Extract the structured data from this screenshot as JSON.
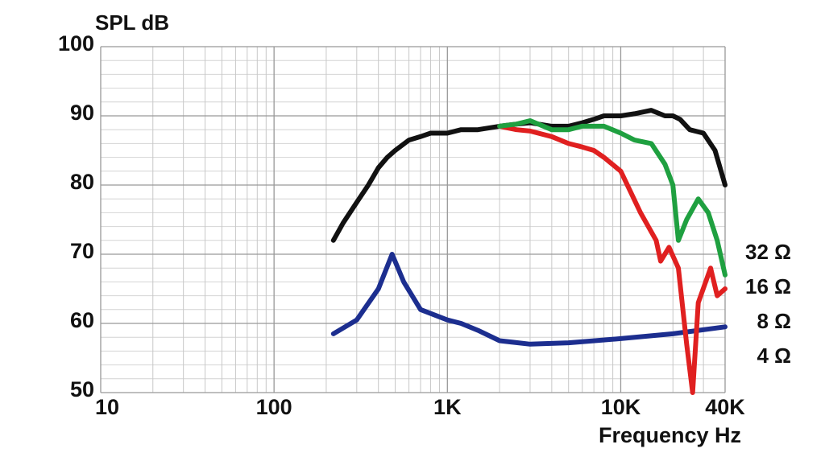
{
  "chart_data": {
    "type": "line",
    "y_label": "SPL dB",
    "x_label": "Frequency Hz",
    "log_x": true,
    "grid": true,
    "xlim": [
      10,
      40000
    ],
    "ylim": [
      50,
      100
    ],
    "xticks": [
      10,
      100,
      {
        "value": 1000,
        "label": "1K"
      },
      {
        "value": 10000,
        "label": "10K"
      },
      {
        "value": 40000,
        "label": "40K"
      }
    ],
    "yticks": [
      50,
      60,
      70,
      80,
      90,
      100
    ],
    "x_minor_ticks": [
      20,
      30,
      40,
      50,
      60,
      70,
      80,
      90,
      200,
      300,
      400,
      500,
      600,
      700,
      800,
      900,
      2000,
      3000,
      4000,
      5000,
      6000,
      7000,
      8000,
      9000,
      20000,
      30000
    ],
    "y_minor_ticks": [
      52,
      54,
      56,
      58,
      62,
      64,
      66,
      68,
      72,
      74,
      76,
      78,
      82,
      84,
      86,
      88,
      92,
      94,
      96,
      98
    ],
    "series": [
      {
        "name": "32 Ω",
        "color": "#111111",
        "x": [
          220,
          250,
          300,
          350,
          400,
          450,
          500,
          600,
          700,
          800,
          1000,
          1200,
          1500,
          2000,
          2500,
          3000,
          4000,
          5000,
          6000,
          7000,
          8000,
          10000,
          12000,
          15000,
          18000,
          20000,
          22000,
          25000,
          30000,
          35000,
          40000
        ],
        "values": [
          72,
          74.5,
          77.5,
          80,
          82.5,
          84,
          85,
          86.5,
          87,
          87.5,
          87.5,
          88,
          88,
          88.5,
          88.8,
          89,
          88.5,
          88.5,
          89,
          89.5,
          90,
          90,
          90.3,
          90.8,
          90,
          90,
          89.5,
          88,
          87.5,
          85,
          80
        ]
      },
      {
        "name": "16 Ω",
        "color": "#1fa040",
        "x": [
          2000,
          2500,
          3000,
          4000,
          5000,
          6000,
          8000,
          10000,
          12000,
          15000,
          18000,
          20000,
          21500,
          24000,
          28000,
          32000,
          36000,
          40000
        ],
        "values": [
          88.5,
          88.8,
          89.3,
          88,
          88,
          88.5,
          88.5,
          87.5,
          86.5,
          86,
          83,
          80,
          72,
          75,
          78,
          76,
          72,
          67
        ]
      },
      {
        "name": "8 Ω",
        "color": "#e02020",
        "x": [
          2000,
          2500,
          3000,
          4000,
          5000,
          6000,
          7000,
          8000,
          10000,
          13000,
          16000,
          17000,
          19000,
          21500,
          24000,
          26000,
          28000,
          33000,
          36000,
          40000
        ],
        "values": [
          88.5,
          88,
          87.8,
          87,
          86,
          85.5,
          85,
          84,
          82,
          76,
          72,
          69,
          71,
          68,
          57,
          50,
          63,
          68,
          64,
          65
        ]
      },
      {
        "name": "4 Ω",
        "color": "#1c2e8f",
        "x": [
          220,
          300,
          400,
          480,
          560,
          700,
          1000,
          1200,
          1500,
          2000,
          3000,
          5000,
          10000,
          20000,
          40000
        ],
        "values": [
          58.5,
          60.5,
          65,
          70,
          66,
          62,
          60.5,
          60,
          59,
          57.5,
          57,
          57.2,
          57.8,
          58.5,
          59.5
        ]
      }
    ]
  }
}
